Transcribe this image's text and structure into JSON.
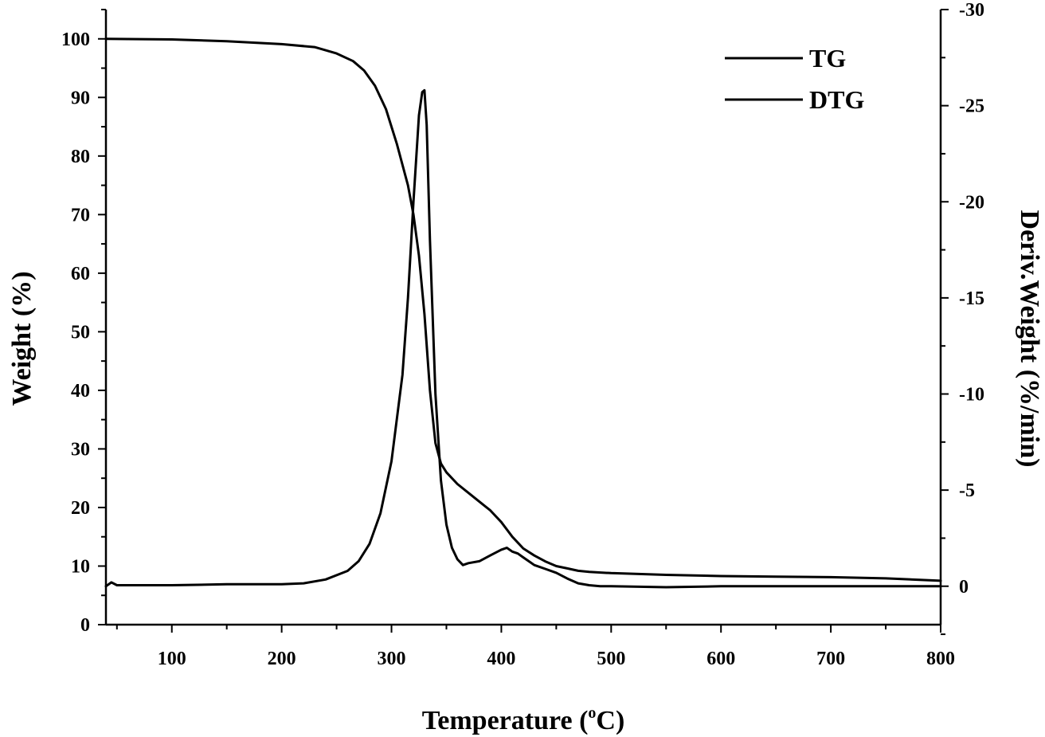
{
  "chart_data": {
    "type": "line",
    "xlabel": {
      "main": "Temperature (",
      "sup": "o",
      "tail": "C)"
    },
    "ylabel_left": "Weight (%)",
    "ylabel_right": "Deriv.Weight  (%/min)",
    "xlim": [
      40,
      800
    ],
    "ylim_left": [
      0,
      105
    ],
    "ylim_right": [
      2,
      -30
    ],
    "right_axis_reversed": true,
    "x_ticks": [
      "100",
      "200",
      "300",
      "400",
      "500",
      "600",
      "700",
      "800"
    ],
    "y_left_ticks": [
      "0",
      "10",
      "20",
      "30",
      "40",
      "50",
      "60",
      "70",
      "80",
      "90",
      "100"
    ],
    "y_right_ticks": [
      "-30",
      "-25",
      "-20",
      "-15",
      "-10",
      "-5",
      "0"
    ],
    "grid": false,
    "legend_position": "top-right",
    "series": [
      {
        "name": "TG",
        "axis": "left",
        "x": [
          40,
          100,
          150,
          200,
          230,
          250,
          265,
          275,
          285,
          295,
          305,
          315,
          320,
          325,
          330,
          335,
          340,
          345,
          350,
          360,
          370,
          380,
          390,
          400,
          410,
          420,
          430,
          440,
          450,
          460,
          470,
          480,
          500,
          550,
          600,
          650,
          700,
          750,
          800
        ],
        "values": [
          100.0,
          99.9,
          99.6,
          99.1,
          98.6,
          97.5,
          96.2,
          94.6,
          92.0,
          88.0,
          82.0,
          75.0,
          70.0,
          63.0,
          53.0,
          40.0,
          31.0,
          27.5,
          26.0,
          24.0,
          22.5,
          21.0,
          19.5,
          17.5,
          15.0,
          13.0,
          11.8,
          10.8,
          10.0,
          9.6,
          9.2,
          9.0,
          8.8,
          8.5,
          8.3,
          8.2,
          8.1,
          7.9,
          7.5
        ]
      },
      {
        "name": "DTG",
        "axis": "right",
        "x": [
          40,
          45,
          50,
          100,
          150,
          200,
          220,
          240,
          260,
          270,
          280,
          290,
          300,
          310,
          315,
          320,
          325,
          328,
          330,
          332,
          335,
          340,
          345,
          350,
          355,
          360,
          365,
          370,
          380,
          390,
          400,
          405,
          410,
          415,
          420,
          425,
          430,
          440,
          450,
          460,
          470,
          480,
          490,
          500,
          550,
          600,
          650,
          700,
          750,
          800
        ],
        "values": [
          0.0,
          -0.2,
          -0.05,
          -0.05,
          -0.1,
          -0.1,
          -0.15,
          -0.35,
          -0.8,
          -1.3,
          -2.2,
          -3.8,
          -6.5,
          -11.0,
          -15.0,
          -20.0,
          -24.5,
          -25.7,
          -25.8,
          -24.0,
          -18.0,
          -10.0,
          -5.5,
          -3.2,
          -2.0,
          -1.4,
          -1.1,
          -1.2,
          -1.3,
          -1.6,
          -1.9,
          -2.0,
          -1.8,
          -1.7,
          -1.5,
          -1.3,
          -1.1,
          -0.9,
          -0.7,
          -0.4,
          -0.15,
          -0.05,
          0.0,
          0.0,
          0.05,
          0.0,
          0.0,
          0.0,
          0.0,
          0.0
        ]
      }
    ]
  },
  "legend": {
    "entries": [
      {
        "label": "TG"
      },
      {
        "label": "DTG"
      }
    ]
  }
}
